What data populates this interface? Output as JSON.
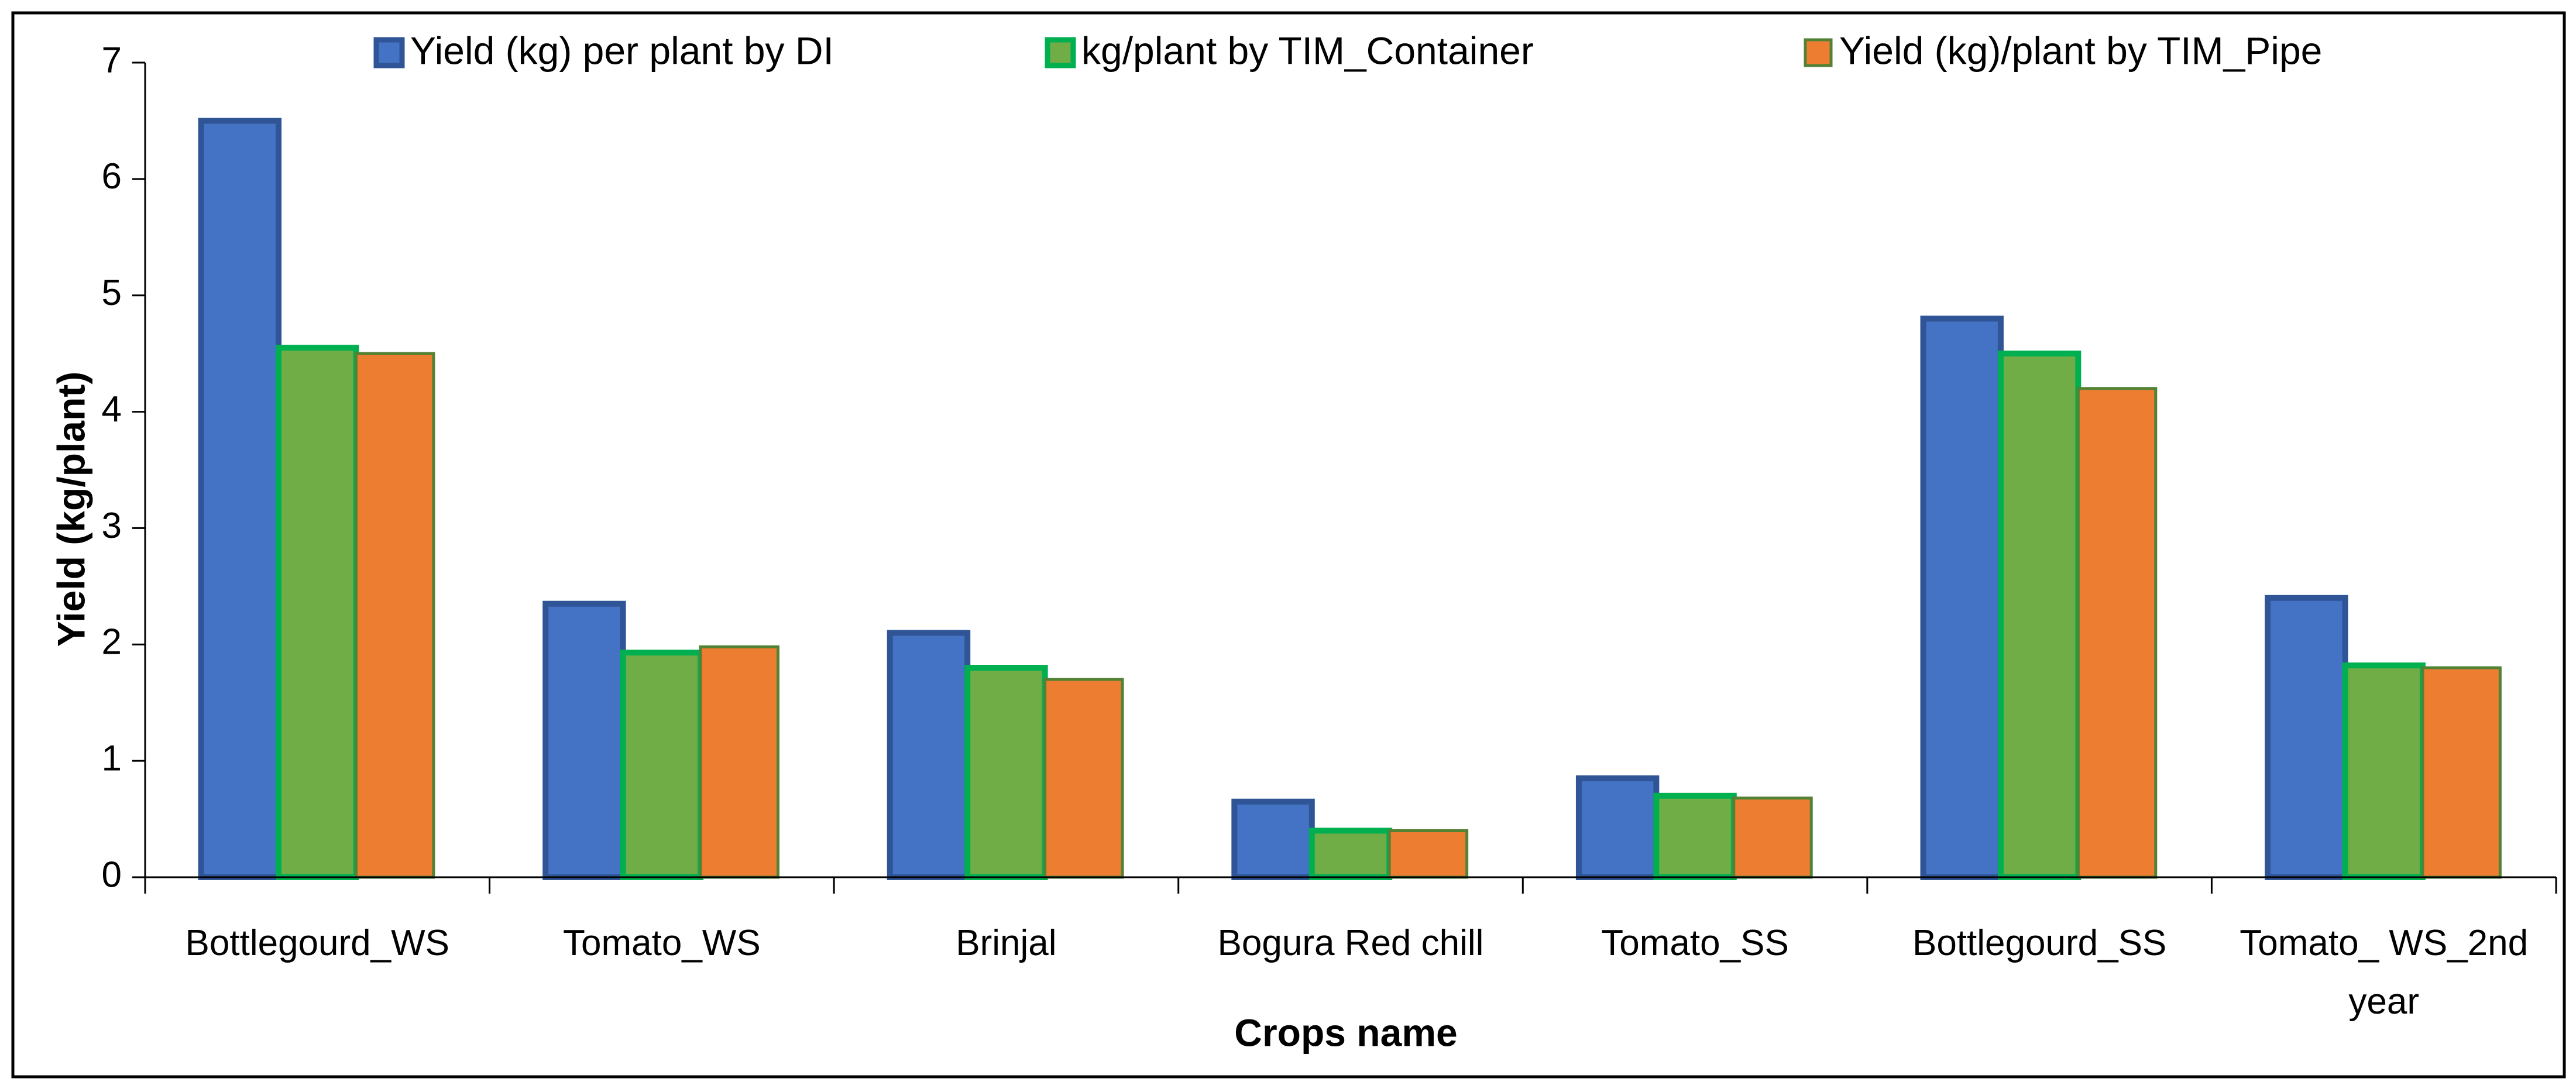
{
  "chart_data": {
    "type": "bar",
    "x_label": "Crops name",
    "y_label": "Yield (kg/plant)",
    "categories": [
      "Bottlegourd_WS",
      "Tomato_WS",
      "Brinjal",
      "Bogura Red chill",
      "Tomato_SS",
      "Bottlegourd_SS",
      "Tomato_ WS_2nd year"
    ],
    "series": [
      {
        "name": "Yield (kg) per plant by DI",
        "color": "#4472c4",
        "edgecolor": "#2f5597",
        "values": [
          6.5,
          2.35,
          2.1,
          0.65,
          0.85,
          4.8,
          2.4
        ]
      },
      {
        "name": "kg/plant by TIM_Container",
        "color": "#70ad47",
        "edgecolor": "#00b050",
        "values": [
          4.55,
          1.93,
          1.8,
          0.4,
          0.7,
          4.5,
          1.82
        ]
      },
      {
        "name": "Yield (kg)/plant by TIM_Pipe",
        "color": "#ed7d31",
        "edgecolor": "#548235",
        "values": [
          4.5,
          1.98,
          1.7,
          0.4,
          0.68,
          4.2,
          1.8
        ]
      }
    ],
    "ylim": [
      0,
      7
    ],
    "yticks": [
      0,
      1,
      2,
      3,
      4,
      5,
      6,
      7
    ],
    "grid": false,
    "legend": "top"
  }
}
